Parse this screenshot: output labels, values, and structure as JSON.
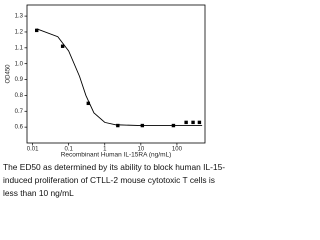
{
  "chart_data": {
    "type": "scatter",
    "x_label": "Recombinant Human IL-15RA (ng/mL)",
    "y_label": "OD450",
    "log_x": true,
    "xlim": [
      0.007,
      600
    ],
    "xticks": [
      0.01,
      0.1,
      1,
      10,
      100
    ],
    "ylim": [
      0.5,
      1.37
    ],
    "yticks": [
      0.6,
      0.7,
      0.8,
      0.9,
      {
        "value": 1,
        "label": "1.0"
      },
      1.1,
      1.2,
      1.3
    ],
    "series": [
      {
        "marker": "square",
        "color": "#000000",
        "x": [
          0.013,
          0.068,
          0.35,
          2.3,
          11,
          80,
          180,
          280,
          420
        ],
        "values": [
          1.21,
          1.11,
          0.75,
          0.61,
          0.61,
          0.61,
          0.63,
          0.63,
          0.63
        ]
      },
      {
        "line": true,
        "color": "#000000",
        "x": [
          0.013,
          0.05,
          0.1,
          0.2,
          0.3,
          0.5,
          1,
          2,
          10,
          500
        ],
        "values": [
          1.22,
          1.17,
          1.08,
          0.92,
          0.8,
          0.69,
          0.63,
          0.615,
          0.61,
          0.61
        ]
      }
    ]
  },
  "caption": [
    "The ED50 as determined by its ability to block human IL-15-",
    "induced proliferation of CTLL-2 mouse cytotoxic T cells is",
    "less than 10 ng/mL"
  ]
}
